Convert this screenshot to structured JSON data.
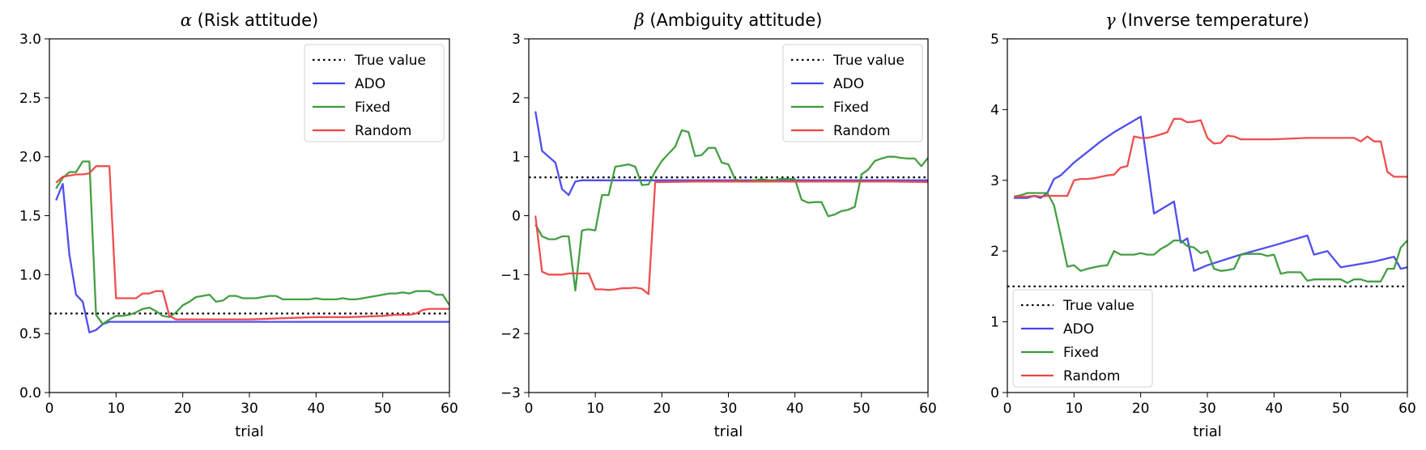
{
  "chart_data": [
    {
      "type": "line",
      "title_symbol": "α",
      "title_text": " (Risk attitude)",
      "xlabel": "trial",
      "ylabel": "",
      "xlim": [
        0,
        60
      ],
      "ylim": [
        0,
        3
      ],
      "xticks": [
        0,
        10,
        20,
        30,
        40,
        50,
        60
      ],
      "xtick_labels": [
        "0",
        "10",
        "20",
        "30",
        "40",
        "50",
        "60"
      ],
      "yticks": [
        0,
        0.5,
        1,
        1.5,
        2,
        2.5,
        3
      ],
      "ytick_labels": [
        "0.0",
        "0.5",
        "1.0",
        "1.5",
        "2.0",
        "2.5",
        "3.0"
      ],
      "legend_position": "upper right",
      "true_value": 0.67,
      "series": [
        {
          "name": "ADO",
          "color": "#4444ee",
          "x": [
            1,
            2,
            3,
            4,
            5,
            6,
            7,
            8,
            9,
            10,
            15,
            20,
            25,
            30,
            35,
            40,
            45,
            50,
            55,
            60
          ],
          "y": [
            1.63,
            1.77,
            1.17,
            0.83,
            0.77,
            0.51,
            0.53,
            0.58,
            0.6,
            0.6,
            0.6,
            0.6,
            0.6,
            0.6,
            0.6,
            0.6,
            0.6,
            0.6,
            0.6,
            0.6
          ]
        },
        {
          "name": "Fixed",
          "color": "#3a9a3a",
          "x": [
            1,
            2,
            3,
            4,
            5,
            6,
            7,
            8,
            9,
            10,
            11,
            12,
            13,
            14,
            15,
            16,
            17,
            18,
            19,
            20,
            21,
            22,
            23,
            24,
            25,
            26,
            27,
            28,
            29,
            30,
            31,
            32,
            33,
            34,
            35,
            36,
            37,
            38,
            39,
            40,
            41,
            42,
            43,
            44,
            45,
            46,
            47,
            48,
            49,
            50,
            51,
            52,
            53,
            54,
            55,
            56,
            57,
            58,
            59,
            60
          ],
          "y": [
            1.73,
            1.82,
            1.87,
            1.87,
            1.96,
            1.96,
            0.66,
            0.58,
            0.62,
            0.65,
            0.65,
            0.66,
            0.68,
            0.71,
            0.72,
            0.69,
            0.65,
            0.64,
            0.68,
            0.74,
            0.77,
            0.81,
            0.82,
            0.83,
            0.77,
            0.78,
            0.82,
            0.82,
            0.8,
            0.8,
            0.8,
            0.81,
            0.82,
            0.82,
            0.79,
            0.79,
            0.79,
            0.79,
            0.79,
            0.8,
            0.79,
            0.79,
            0.79,
            0.8,
            0.79,
            0.79,
            0.8,
            0.81,
            0.82,
            0.83,
            0.84,
            0.84,
            0.85,
            0.84,
            0.86,
            0.86,
            0.86,
            0.83,
            0.83,
            0.74
          ]
        },
        {
          "name": "Random",
          "color": "#ee4444",
          "x": [
            1,
            2,
            3,
            4,
            5,
            6,
            7,
            8,
            9,
            10,
            11,
            12,
            13,
            14,
            15,
            16,
            17,
            18,
            19,
            20,
            25,
            30,
            35,
            40,
            45,
            50,
            52,
            54,
            55,
            56,
            57,
            58,
            60
          ],
          "y": [
            1.78,
            1.83,
            1.84,
            1.85,
            1.85,
            1.86,
            1.92,
            1.92,
            1.92,
            0.8,
            0.8,
            0.8,
            0.8,
            0.84,
            0.84,
            0.86,
            0.86,
            0.65,
            0.62,
            0.62,
            0.62,
            0.62,
            0.63,
            0.64,
            0.64,
            0.65,
            0.66,
            0.66,
            0.67,
            0.7,
            0.71,
            0.71,
            0.71
          ]
        }
      ]
    },
    {
      "type": "line",
      "title_symbol": "β",
      "title_text": " (Ambiguity attitude)",
      "xlabel": "trial",
      "ylabel": "",
      "xlim": [
        0,
        60
      ],
      "ylim": [
        -3,
        3
      ],
      "xticks": [
        0,
        10,
        20,
        30,
        40,
        50,
        60
      ],
      "xtick_labels": [
        "0",
        "10",
        "20",
        "30",
        "40",
        "50",
        "60"
      ],
      "yticks": [
        -3,
        -2,
        -1,
        0,
        1,
        2,
        3
      ],
      "ytick_labels": [
        "−3",
        "−2",
        "−1",
        "0",
        "1",
        "2",
        "3"
      ],
      "legend_position": "upper right",
      "true_value": 0.65,
      "series": [
        {
          "name": "ADO",
          "color": "#4444ee",
          "x": [
            1,
            2,
            3,
            4,
            5,
            6,
            7,
            8,
            9,
            10,
            15,
            20,
            25,
            30,
            35,
            40,
            45,
            50,
            55,
            60
          ],
          "y": [
            1.77,
            1.1,
            1.0,
            0.9,
            0.45,
            0.35,
            0.58,
            0.6,
            0.6,
            0.6,
            0.6,
            0.6,
            0.6,
            0.6,
            0.6,
            0.6,
            0.6,
            0.6,
            0.6,
            0.6
          ]
        },
        {
          "name": "Fixed",
          "color": "#3a9a3a",
          "x": [
            1,
            2,
            3,
            4,
            5,
            6,
            7,
            8,
            9,
            10,
            11,
            12,
            13,
            14,
            15,
            16,
            17,
            18,
            19,
            20,
            21,
            22,
            23,
            24,
            25,
            26,
            27,
            28,
            29,
            30,
            31,
            32,
            33,
            34,
            35,
            36,
            37,
            38,
            39,
            40,
            41,
            42,
            43,
            44,
            45,
            46,
            47,
            48,
            49,
            50,
            51,
            52,
            53,
            54,
            55,
            56,
            57,
            58,
            59,
            60
          ],
          "y": [
            -0.15,
            -0.35,
            -0.4,
            -0.4,
            -0.35,
            -0.35,
            -1.27,
            -0.25,
            -0.23,
            -0.25,
            0.35,
            0.35,
            0.83,
            0.85,
            0.87,
            0.83,
            0.52,
            0.53,
            0.75,
            0.93,
            1.05,
            1.17,
            1.45,
            1.42,
            1.01,
            1.03,
            1.15,
            1.15,
            0.9,
            0.87,
            0.62,
            0.58,
            0.58,
            0.6,
            0.62,
            0.6,
            0.6,
            0.63,
            0.62,
            0.62,
            0.27,
            0.22,
            0.23,
            0.23,
            -0.01,
            0.02,
            0.08,
            0.1,
            0.15,
            0.7,
            0.78,
            0.93,
            0.97,
            1.0,
            1.0,
            0.98,
            0.97,
            0.97,
            0.84,
            0.98
          ]
        },
        {
          "name": "Random",
          "color": "#ee4444",
          "x": [
            1,
            2,
            3,
            4,
            5,
            6,
            7,
            8,
            9,
            10,
            11,
            12,
            13,
            14,
            15,
            16,
            17,
            18,
            19,
            20,
            25,
            30,
            35,
            40,
            45,
            50,
            55,
            60
          ],
          "y": [
            0.0,
            -0.95,
            -1.0,
            -1.0,
            -1.0,
            -0.98,
            -0.98,
            -0.98,
            -0.98,
            -1.25,
            -1.25,
            -1.26,
            -1.25,
            -1.23,
            -1.23,
            -1.22,
            -1.24,
            -1.33,
            0.57,
            0.57,
            0.58,
            0.58,
            0.58,
            0.58,
            0.58,
            0.58,
            0.58,
            0.57
          ]
        }
      ]
    },
    {
      "type": "line",
      "title_symbol": "γ",
      "title_text": " (Inverse temperature)",
      "xlabel": "trial",
      "ylabel": "",
      "xlim": [
        0,
        60
      ],
      "ylim": [
        0,
        5
      ],
      "xticks": [
        0,
        10,
        20,
        30,
        40,
        50,
        60
      ],
      "xtick_labels": [
        "0",
        "10",
        "20",
        "30",
        "40",
        "50",
        "60"
      ],
      "yticks": [
        0,
        1,
        2,
        3,
        4,
        5
      ],
      "ytick_labels": [
        "0",
        "1",
        "2",
        "3",
        "4",
        "5"
      ],
      "legend_position": "lower left",
      "true_value": 1.5,
      "series": [
        {
          "name": "ADO",
          "color": "#4444ee",
          "x": [
            1,
            3,
            4,
            5,
            6,
            7,
            8,
            10,
            12,
            14,
            16,
            18,
            20,
            22,
            25,
            26,
            27,
            28,
            30,
            35,
            40,
            45,
            46,
            48,
            50,
            55,
            58,
            59,
            60
          ],
          "y": [
            2.75,
            2.75,
            2.78,
            2.75,
            2.82,
            3.02,
            3.07,
            3.25,
            3.4,
            3.55,
            3.68,
            3.79,
            3.9,
            2.53,
            2.7,
            2.12,
            2.18,
            1.72,
            1.8,
            1.95,
            2.08,
            2.22,
            1.95,
            2.0,
            1.77,
            1.85,
            1.92,
            1.75,
            1.77
          ]
        },
        {
          "name": "Fixed",
          "color": "#3a9a3a",
          "x": [
            1,
            2,
            3,
            4,
            5,
            6,
            7,
            8,
            9,
            10,
            11,
            12,
            13,
            14,
            15,
            16,
            17,
            18,
            19,
            20,
            21,
            22,
            23,
            24,
            25,
            26,
            27,
            28,
            29,
            30,
            31,
            32,
            33,
            34,
            35,
            36,
            37,
            38,
            39,
            40,
            41,
            42,
            43,
            44,
            45,
            46,
            47,
            48,
            49,
            50,
            51,
            52,
            53,
            54,
            55,
            56,
            57,
            58,
            59,
            60
          ],
          "y": [
            2.77,
            2.79,
            2.82,
            2.82,
            2.82,
            2.82,
            2.65,
            2.22,
            1.78,
            1.8,
            1.72,
            1.75,
            1.77,
            1.79,
            1.8,
            2.0,
            1.95,
            1.95,
            1.95,
            1.97,
            1.95,
            1.95,
            2.03,
            2.08,
            2.15,
            2.15,
            2.07,
            2.05,
            1.97,
            2.0,
            1.75,
            1.72,
            1.73,
            1.75,
            1.95,
            1.96,
            1.96,
            1.96,
            1.93,
            1.95,
            1.68,
            1.7,
            1.7,
            1.7,
            1.58,
            1.6,
            1.6,
            1.6,
            1.6,
            1.6,
            1.55,
            1.6,
            1.6,
            1.57,
            1.57,
            1.57,
            1.75,
            1.75,
            2.05,
            2.15
          ]
        },
        {
          "name": "Random",
          "color": "#ee4444",
          "x": [
            1,
            2,
            3,
            4,
            5,
            6,
            7,
            8,
            9,
            10,
            11,
            12,
            13,
            14,
            15,
            16,
            17,
            18,
            19,
            20,
            21,
            22,
            23,
            24,
            25,
            26,
            27,
            28,
            29,
            30,
            31,
            32,
            33,
            34,
            35,
            36,
            37,
            38,
            39,
            40,
            45,
            50,
            52,
            53,
            54,
            55,
            56,
            57,
            58,
            59,
            60
          ],
          "y": [
            2.77,
            2.77,
            2.77,
            2.78,
            2.77,
            2.78,
            2.78,
            2.78,
            2.78,
            3.0,
            3.02,
            3.02,
            3.03,
            3.05,
            3.07,
            3.08,
            3.18,
            3.2,
            3.62,
            3.6,
            3.6,
            3.62,
            3.65,
            3.68,
            3.87,
            3.87,
            3.82,
            3.83,
            3.85,
            3.6,
            3.52,
            3.53,
            3.63,
            3.62,
            3.58,
            3.58,
            3.58,
            3.58,
            3.58,
            3.58,
            3.6,
            3.6,
            3.6,
            3.55,
            3.62,
            3.55,
            3.55,
            3.12,
            3.05,
            3.05,
            3.05
          ]
        }
      ]
    }
  ],
  "legend_labels": {
    "true_value": "True value",
    "ado": "ADO",
    "fixed": "Fixed",
    "random": "Random"
  }
}
